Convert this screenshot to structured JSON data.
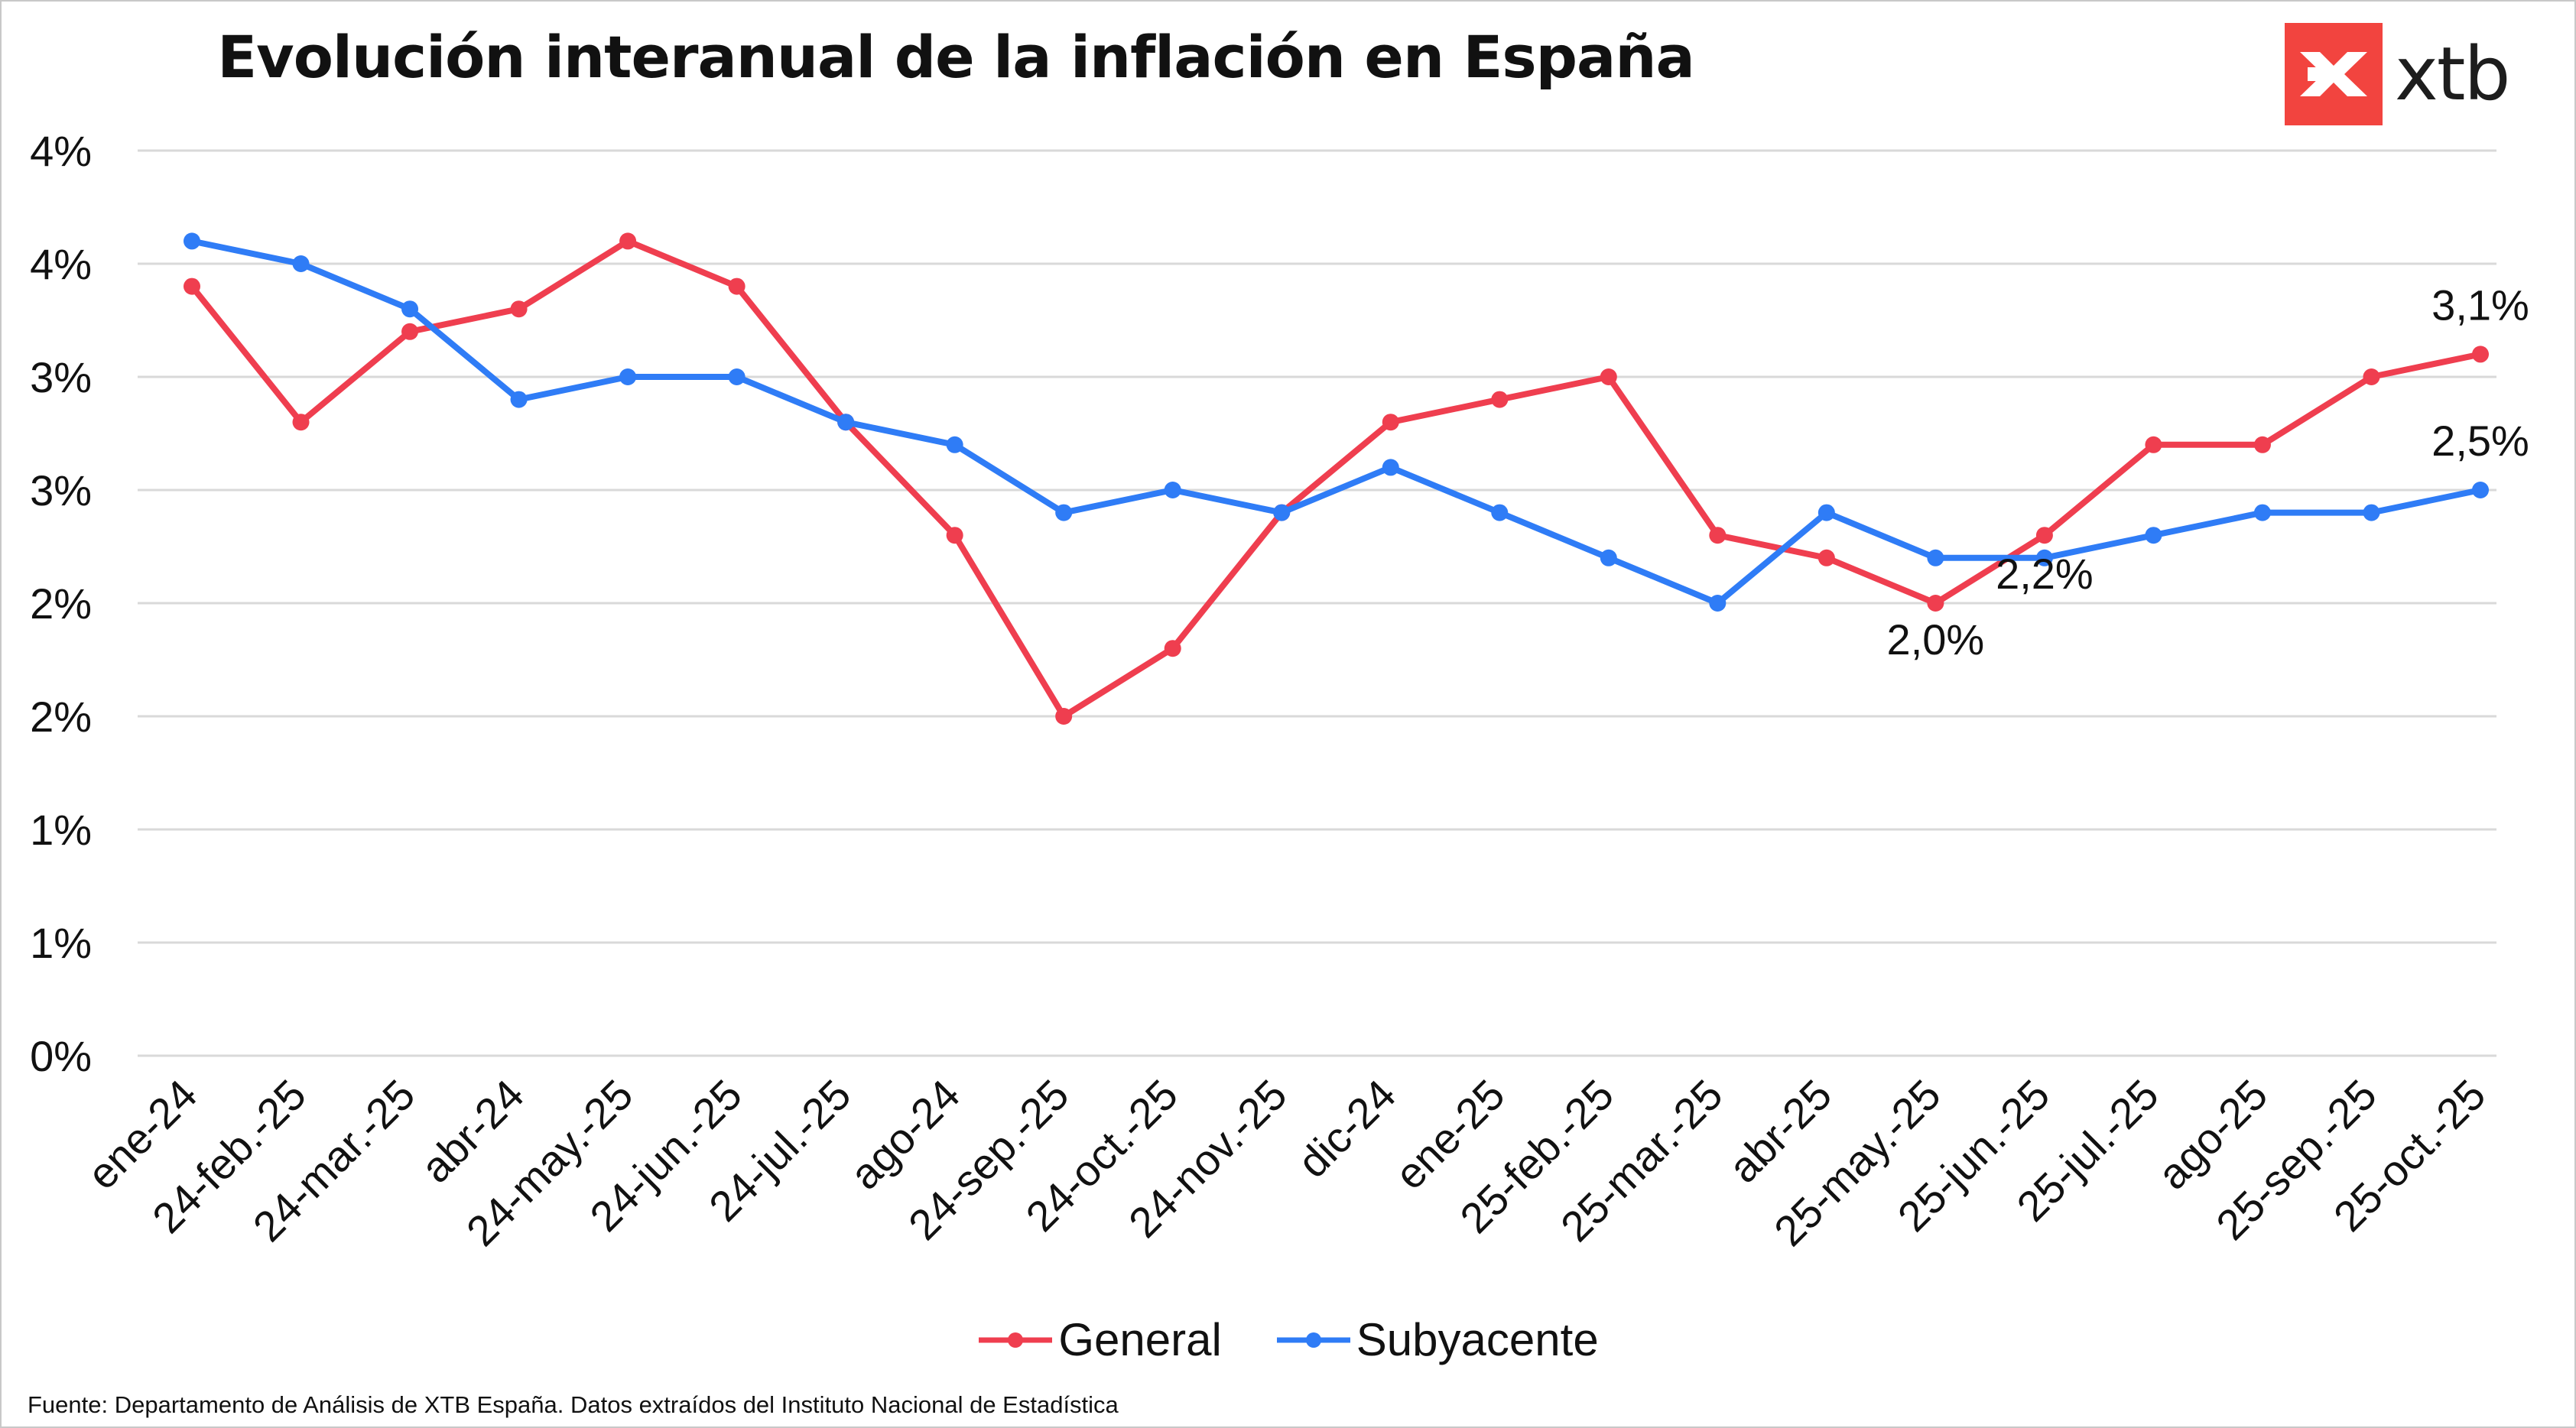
{
  "title": "Evolución interanual de la inflación en España",
  "logo": {
    "text": "xtb",
    "icon": "xtb-logo-icon",
    "color": "#f2443f"
  },
  "source": "Fuente: Departamento de Análisis de XTB España. Datos extraídos del Instituto Nacional de Estadística",
  "legend": [
    {
      "name": "General",
      "color": "#ef3e4f"
    },
    {
      "name": "Subyacente",
      "color": "#2f7cf6"
    }
  ],
  "chart_data": {
    "type": "line",
    "title": "Evolución interanual de la inflación en España",
    "categories": [
      "ene-24",
      "24-feb.-25",
      "24-mar.-25",
      "abr-24",
      "24-may.-25",
      "24-jun.-25",
      "24-jul.-25",
      "ago-24",
      "24-sep.-25",
      "24-oct.-25",
      "24-nov.-25",
      "dic-24",
      "ene-25",
      "25-feb.-25",
      "25-mar.-25",
      "abr-25",
      "25-may.-25",
      "25-jun.-25",
      "25-jul.-25",
      "ago-25",
      "25-sep.-25",
      "25-oct.-25"
    ],
    "series": [
      {
        "name": "General",
        "color": "#ef3e4f",
        "values": [
          3.4,
          2.8,
          3.2,
          3.3,
          3.6,
          3.4,
          2.8,
          2.3,
          1.5,
          1.8,
          2.4,
          2.8,
          2.9,
          3.0,
          2.3,
          2.2,
          2.0,
          2.3,
          2.7,
          2.7,
          3.0,
          3.1
        ]
      },
      {
        "name": "Subyacente",
        "color": "#2f7cf6",
        "values": [
          3.6,
          3.5,
          3.3,
          2.9,
          3.0,
          3.0,
          2.8,
          2.7,
          2.4,
          2.5,
          2.4,
          2.6,
          2.4,
          2.2,
          2.0,
          2.4,
          2.2,
          2.2,
          2.3,
          2.4,
          2.4,
          2.5
        ]
      }
    ],
    "y_ticks": [
      "0%",
      "1%",
      "1%",
      "2%",
      "2%",
      "3%",
      "3%",
      "4%",
      "4%"
    ],
    "ylim": [
      0,
      4.0
    ],
    "grid": "horizontal",
    "legend_position": "bottom",
    "annotations": [
      {
        "text": "3,1%",
        "series": "General",
        "index": 21
      },
      {
        "text": "2,5%",
        "series": "Subyacente",
        "index": 21
      },
      {
        "text": "2,0%",
        "series": "General",
        "index": 16
      },
      {
        "text": "2,2%",
        "series": "Subyacente",
        "index": 17
      }
    ]
  }
}
